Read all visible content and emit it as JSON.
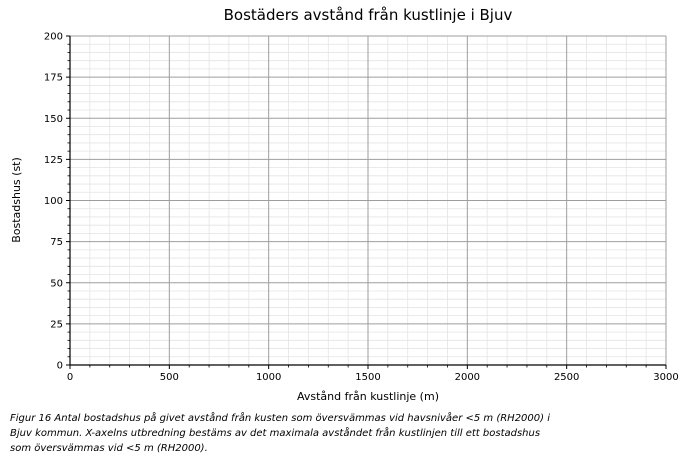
{
  "chart_data": {
    "type": "bar",
    "title": "Bostäders avstånd från kustlinje i Bjuv",
    "xlabel": "Avstånd från kustlinje (m)",
    "ylabel": "Bostadshus (st)",
    "xlim": [
      0,
      3000
    ],
    "ylim": [
      0,
      200
    ],
    "x_ticks": [
      0,
      500,
      1000,
      1500,
      2000,
      2500,
      3000
    ],
    "y_ticks": [
      0,
      25,
      50,
      75,
      100,
      125,
      150,
      175,
      200
    ],
    "x_minor_step": 100,
    "y_minor_step": 5,
    "grid": {
      "major": true,
      "minor": true
    },
    "legend": "none",
    "series": [],
    "values": [],
    "plotted_data": "none — axes are empty, no bars or points are drawn",
    "colors": {
      "text": "#000000",
      "spine": "#000000",
      "tick": "#000000",
      "major_grid": "#9e9e9e",
      "minor_grid": "#e4e4e4",
      "background": "#ffffff"
    }
  },
  "caption": {
    "lines": [
      "Figur 16 Antal bostadshus på givet avstånd från kusten som översvämmas vid havsnivåer <5 m (RH2000) i",
      "Bjuv kommun. X-axelns utbredning bestäms av det maximala avståndet från kustlinjen till ett bostadshus",
      "som översvämmas vid <5 m (RH2000)."
    ]
  }
}
